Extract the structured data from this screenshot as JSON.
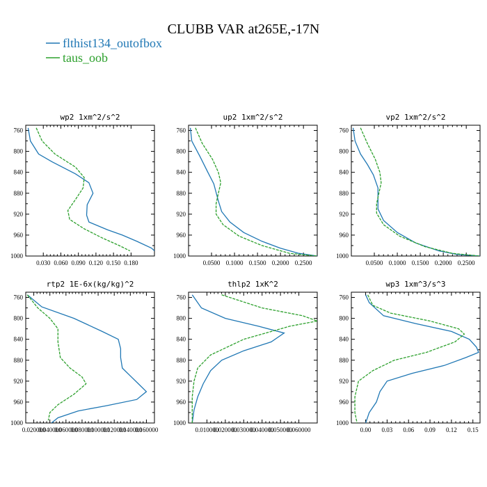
{
  "figure_title": "CLUBB VAR at265E,-17N",
  "colors": {
    "series1": "#1f77b4",
    "series2": "#2ca02c"
  },
  "chart_data": [
    {
      "type": "line",
      "title": "wp2  1xm^2/s^2",
      "xlim": [
        0.0,
        0.22
      ],
      "ylim": [
        1000,
        750
      ],
      "xticks": [
        0.03,
        0.06,
        0.09,
        0.12,
        0.15,
        0.18
      ],
      "xtick_labels": [
        "0.030",
        "0.060",
        "0.090",
        "0.120",
        "0.150",
        "0.180"
      ],
      "yticks": [
        760,
        800,
        840,
        880,
        920,
        960,
        1000
      ],
      "series": [
        {
          "name": "flthist134_outofbox",
          "style": "solid",
          "points": [
            [
              0.004,
              755
            ],
            [
              0.008,
              780
            ],
            [
              0.022,
              805
            ],
            [
              0.045,
              820
            ],
            [
              0.085,
              843
            ],
            [
              0.108,
              860
            ],
            [
              0.115,
              880
            ],
            [
              0.105,
              902
            ],
            [
              0.104,
              922
            ],
            [
              0.108,
              935
            ],
            [
              0.14,
              950
            ],
            [
              0.165,
              960
            ],
            [
              0.19,
              972
            ],
            [
              0.215,
              985
            ],
            [
              0.22,
              990
            ]
          ]
        },
        {
          "name": "taus_oob",
          "style": "dashed",
          "points": [
            [
              0.018,
              755
            ],
            [
              0.028,
              780
            ],
            [
              0.05,
              805
            ],
            [
              0.085,
              830
            ],
            [
              0.1,
              850
            ],
            [
              0.098,
              870
            ],
            [
              0.085,
              892
            ],
            [
              0.072,
              913
            ],
            [
              0.075,
              930
            ],
            [
              0.1,
              948
            ],
            [
              0.13,
              965
            ],
            [
              0.16,
              980
            ],
            [
              0.178,
              990
            ]
          ]
        }
      ]
    },
    {
      "type": "line",
      "title": "up2  1xm^2/s^2",
      "xlim": [
        0.0,
        0.28
      ],
      "ylim": [
        1000,
        750
      ],
      "xticks": [
        0.05,
        0.1,
        0.15,
        0.2,
        0.25
      ],
      "xtick_labels": [
        "0.0500",
        "0.1000",
        "0.1500",
        "0.2000",
        "0.2500"
      ],
      "yticks": [
        760,
        800,
        840,
        880,
        920,
        960,
        1000
      ],
      "series": [
        {
          "name": "flthist134_outofbox",
          "style": "solid",
          "points": [
            [
              0.004,
              755
            ],
            [
              0.007,
              780
            ],
            [
              0.025,
              810
            ],
            [
              0.042,
              840
            ],
            [
              0.055,
              862
            ],
            [
              0.065,
              895
            ],
            [
              0.072,
              915
            ],
            [
              0.09,
              935
            ],
            [
              0.12,
              955
            ],
            [
              0.16,
              972
            ],
            [
              0.2,
              985
            ],
            [
              0.24,
              995
            ],
            [
              0.28,
              1000
            ]
          ]
        },
        {
          "name": "taus_oob",
          "style": "dashed",
          "points": [
            [
              0.015,
              755
            ],
            [
              0.03,
              785
            ],
            [
              0.052,
              815
            ],
            [
              0.065,
              840
            ],
            [
              0.07,
              860
            ],
            [
              0.065,
              880
            ],
            [
              0.06,
              900
            ],
            [
              0.06,
              920
            ],
            [
              0.075,
              940
            ],
            [
              0.11,
              962
            ],
            [
              0.16,
              980
            ],
            [
              0.22,
              995
            ],
            [
              0.28,
              1000
            ]
          ]
        }
      ]
    },
    {
      "type": "line",
      "title": "vp2  1xm^2/s^2",
      "xlim": [
        0.0,
        0.28
      ],
      "ylim": [
        1000,
        750
      ],
      "xticks": [
        0.05,
        0.1,
        0.15,
        0.2,
        0.25
      ],
      "xtick_labels": [
        "0.0500",
        "0.1000",
        "0.1500",
        "0.2000",
        "0.2500"
      ],
      "yticks": [
        760,
        800,
        840,
        880,
        920,
        960,
        1000
      ],
      "series": [
        {
          "name": "flthist134_outofbox",
          "style": "solid",
          "points": [
            [
              0.004,
              755
            ],
            [
              0.008,
              780
            ],
            [
              0.02,
              805
            ],
            [
              0.035,
              825
            ],
            [
              0.048,
              845
            ],
            [
              0.058,
              870
            ],
            [
              0.058,
              890
            ],
            [
              0.058,
              910
            ],
            [
              0.07,
              932
            ],
            [
              0.1,
              955
            ],
            [
              0.14,
              975
            ],
            [
              0.19,
              990
            ],
            [
              0.23,
              997
            ],
            [
              0.28,
              1000
            ]
          ]
        },
        {
          "name": "taus_oob",
          "style": "dashed",
          "points": [
            [
              0.02,
              755
            ],
            [
              0.035,
              785
            ],
            [
              0.052,
              815
            ],
            [
              0.062,
              840
            ],
            [
              0.065,
              860
            ],
            [
              0.06,
              880
            ],
            [
              0.055,
              900
            ],
            [
              0.055,
              918
            ],
            [
              0.07,
              940
            ],
            [
              0.105,
              962
            ],
            [
              0.16,
              982
            ],
            [
              0.22,
              995
            ],
            [
              0.28,
              1000
            ]
          ]
        }
      ]
    },
    {
      "type": "line",
      "title": "rtp2  1E-6x(kg/kg)^2",
      "xlim": [
        0.01,
        0.17
      ],
      "ylim": [
        1000,
        750
      ],
      "xticks": [
        0.02,
        0.04,
        0.06,
        0.08,
        0.1,
        0.12,
        0.14,
        0.16
      ],
      "xtick_labels": [
        "0.020000",
        "0.040000",
        "0.060000",
        "0.080000",
        "0.100000",
        "0.120000",
        "0.140000",
        "0.160000"
      ],
      "yticks": [
        760,
        800,
        840,
        880,
        920,
        960,
        1000
      ],
      "series": [
        {
          "name": "flthist134_outofbox",
          "style": "solid",
          "points": [
            [
              0.012,
              755
            ],
            [
              0.03,
              778
            ],
            [
              0.07,
              800
            ],
            [
              0.105,
              825
            ],
            [
              0.125,
              840
            ],
            [
              0.128,
              858
            ],
            [
              0.128,
              875
            ],
            [
              0.13,
              895
            ],
            [
              0.14,
              910
            ],
            [
              0.15,
              925
            ],
            [
              0.16,
              940
            ],
            [
              0.148,
              955
            ],
            [
              0.11,
              967
            ],
            [
              0.075,
              977
            ],
            [
              0.05,
              990
            ],
            [
              0.042,
              1000
            ]
          ]
        },
        {
          "name": "taus_oob",
          "style": "dashed",
          "points": [
            [
              0.012,
              755
            ],
            [
              0.025,
              780
            ],
            [
              0.04,
              800
            ],
            [
              0.05,
              820
            ],
            [
              0.05,
              845
            ],
            [
              0.053,
              875
            ],
            [
              0.065,
              895
            ],
            [
              0.08,
              912
            ],
            [
              0.085,
              925
            ],
            [
              0.07,
              945
            ],
            [
              0.05,
              965
            ],
            [
              0.04,
              980
            ],
            [
              0.038,
              995
            ]
          ]
        }
      ]
    },
    {
      "type": "line",
      "title": "thlp2  1xK^2",
      "xlim": [
        0.0,
        0.07
      ],
      "ylim": [
        1000,
        750
      ],
      "xticks": [
        0.01,
        0.02,
        0.03,
        0.04,
        0.05,
        0.06
      ],
      "xtick_labels": [
        "0.010000",
        "0.020000",
        "0.030000",
        "0.040000",
        "0.050000",
        "0.060000"
      ],
      "yticks": [
        760,
        800,
        840,
        880,
        920,
        960,
        1000
      ],
      "series": [
        {
          "name": "flthist134_outofbox",
          "style": "solid",
          "points": [
            [
              0.002,
              755
            ],
            [
              0.007,
              780
            ],
            [
              0.02,
              800
            ],
            [
              0.038,
              815
            ],
            [
              0.052,
              828
            ],
            [
              0.045,
              845
            ],
            [
              0.03,
              862
            ],
            [
              0.018,
              880
            ],
            [
              0.012,
              900
            ],
            [
              0.008,
              925
            ],
            [
              0.005,
              950
            ],
            [
              0.003,
              975
            ],
            [
              0.002,
              1000
            ]
          ]
        },
        {
          "name": "taus_oob",
          "style": "dashed",
          "points": [
            [
              0.018,
              755
            ],
            [
              0.04,
              780
            ],
            [
              0.062,
              795
            ],
            [
              0.07,
              805
            ],
            [
              0.055,
              815
            ],
            [
              0.03,
              840
            ],
            [
              0.012,
              870
            ],
            [
              0.005,
              895
            ],
            [
              0.003,
              920
            ],
            [
              0.002,
              950
            ],
            [
              0.002,
              975
            ],
            [
              0.002,
              1000
            ]
          ]
        }
      ]
    },
    {
      "type": "line",
      "title": "wp3  1xm^3/s^3",
      "xlim": [
        -0.02,
        0.16
      ],
      "ylim": [
        1000,
        750
      ],
      "xticks": [
        0.0,
        0.03,
        0.06,
        0.09,
        0.12,
        0.15
      ],
      "xtick_labels": [
        "0.00",
        "0.03",
        "0.06",
        "0.09",
        "0.12",
        "0.15"
      ],
      "yticks": [
        760,
        800,
        840,
        880,
        920,
        960,
        1000
      ],
      "series": [
        {
          "name": "flthist134_outofbox",
          "style": "solid",
          "points": [
            [
              0.0,
              755
            ],
            [
              0.005,
              770
            ],
            [
              0.025,
              795
            ],
            [
              0.07,
              810
            ],
            [
              0.12,
              825
            ],
            [
              0.145,
              840
            ],
            [
              0.155,
              855
            ],
            [
              0.158,
              865
            ],
            [
              0.14,
              875
            ],
            [
              0.11,
              890
            ],
            [
              0.065,
              905
            ],
            [
              0.03,
              920
            ],
            [
              0.02,
              940
            ],
            [
              0.015,
              960
            ],
            [
              0.005,
              980
            ],
            [
              0.0,
              1000
            ]
          ]
        },
        {
          "name": "taus_oob",
          "style": "dashed",
          "points": [
            [
              0.003,
              755
            ],
            [
              0.01,
              775
            ],
            [
              0.035,
              790
            ],
            [
              0.09,
              805
            ],
            [
              0.13,
              820
            ],
            [
              0.138,
              830
            ],
            [
              0.125,
              845
            ],
            [
              0.085,
              865
            ],
            [
              0.04,
              880
            ],
            [
              0.01,
              900
            ],
            [
              -0.01,
              920
            ],
            [
              -0.015,
              950
            ],
            [
              -0.015,
              980
            ],
            [
              -0.012,
              1000
            ]
          ]
        }
      ]
    }
  ]
}
